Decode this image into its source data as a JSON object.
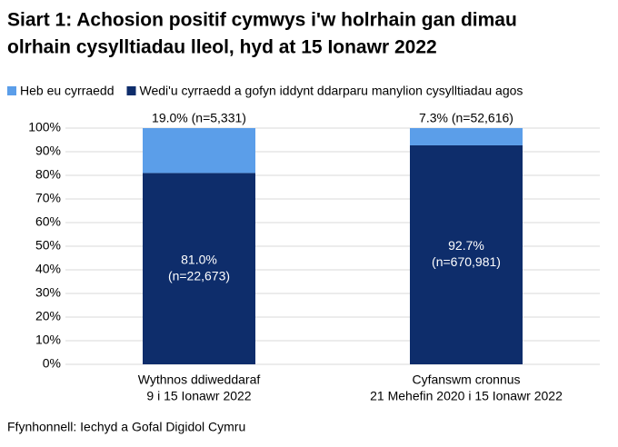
{
  "chart_data": {
    "type": "stacked_bar",
    "title": [
      "Siart 1: Achosion positif cymwys i'w holrhain gan dimau",
      "olrhain cysylltiadau lleol, hyd at 15 Ionawr 2022"
    ],
    "categories": [
      [
        "Wythnos ddiweddaraf",
        "9 i 15 Ionawr 2022"
      ],
      [
        "Cyfanswm cronnus",
        "21 Mehefin 2020 i 15 Ionawr 2022"
      ]
    ],
    "series": [
      {
        "name": "Heb eu cyrraedd",
        "color": "#5b9ee9",
        "values": [
          19.0,
          7.3
        ],
        "value_labels": [
          [
            "19.0% (n=5,331)"
          ],
          [
            "7.3% (n=52,616)"
          ]
        ]
      },
      {
        "name": "Wedi'u cyrraedd a gofyn iddynt ddarparu manylion cysylltiadau agos",
        "color": "#0e2d6b",
        "values": [
          81.0,
          92.7
        ],
        "value_labels": [
          [
            "81.0%",
            "(n=22,673)"
          ],
          [
            "92.7%",
            "(n=670,981)"
          ]
        ]
      }
    ],
    "ylim": [
      0,
      100
    ],
    "yticks": [
      {
        "value": 0,
        "label": "0%"
      },
      {
        "value": 10,
        "label": "10%"
      },
      {
        "value": 20,
        "label": "20%"
      },
      {
        "value": 30,
        "label": "30%"
      },
      {
        "value": 40,
        "label": "40%"
      },
      {
        "value": 50,
        "label": "50%"
      },
      {
        "value": 60,
        "label": "60%"
      },
      {
        "value": 70,
        "label": "70%"
      },
      {
        "value": 80,
        "label": "80%"
      },
      {
        "value": 90,
        "label": "90%"
      },
      {
        "value": 100,
        "label": "100%"
      }
    ],
    "grid": true,
    "source": "Ffynhonnell: Iechyd a Gofal Digidol Cymru"
  }
}
